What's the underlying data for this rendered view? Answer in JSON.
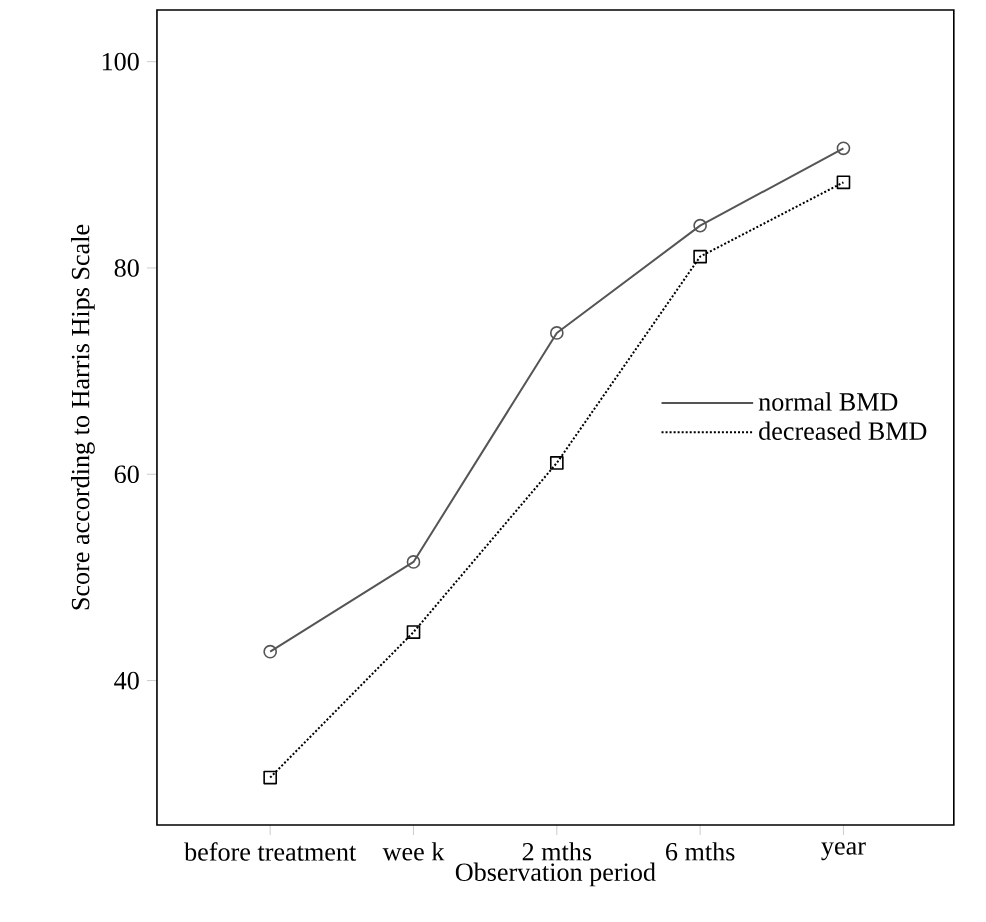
{
  "chart_data": {
    "type": "line",
    "xlabel": "Observation period",
    "ylabel": "Score according to Harris Hips Scale",
    "categories": [
      "before treatment",
      "wee k",
      "2 mths",
      "6 mths",
      "year"
    ],
    "series": [
      {
        "name": "normal BMD",
        "color": "#555555",
        "marker": "circle",
        "line_style": "solid",
        "values": [
          42.8,
          51.5,
          73.7,
          84.1,
          91.6
        ]
      },
      {
        "name": "decreased BMD",
        "color": "#000000",
        "marker": "square",
        "line_style": "dotted",
        "values": [
          30.6,
          44.7,
          61.1,
          81.1,
          88.3
        ]
      }
    ],
    "ylim": [
      26,
      105
    ],
    "yticks": [
      40,
      60,
      80,
      100
    ],
    "grid": false,
    "legend": "right"
  }
}
